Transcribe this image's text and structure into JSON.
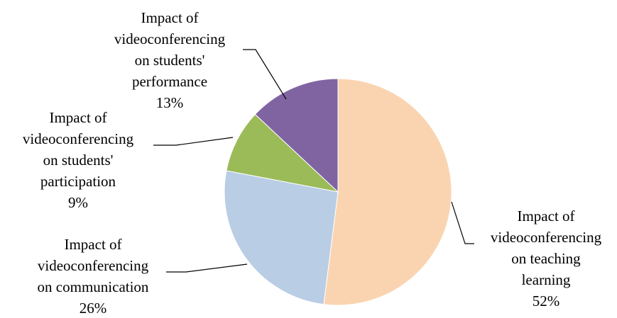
{
  "chart_data": {
    "type": "pie",
    "title": "",
    "slices": [
      {
        "name_lines": [
          "Impact of",
          "videoconferencing",
          "on teaching",
          "learning"
        ],
        "value": 52,
        "value_label": "52%",
        "color": "#FAD4B1"
      },
      {
        "name_lines": [
          "Impact of",
          "videoconferencing",
          "on communication"
        ],
        "value": 26,
        "value_label": "26%",
        "color": "#B9CDE5"
      },
      {
        "name_lines": [
          "Impact of",
          "videoconferencing",
          "on students'",
          "participation"
        ],
        "value": 9,
        "value_label": "9%",
        "color": "#9BBB59"
      },
      {
        "name_lines": [
          "Impact of",
          "videoconferencing",
          "on students'",
          "performance"
        ],
        "value": 13,
        "value_label": "13%",
        "color": "#8064A2"
      }
    ],
    "start_angle": "12 o'clock",
    "direction": "clockwise",
    "legend": "none"
  }
}
